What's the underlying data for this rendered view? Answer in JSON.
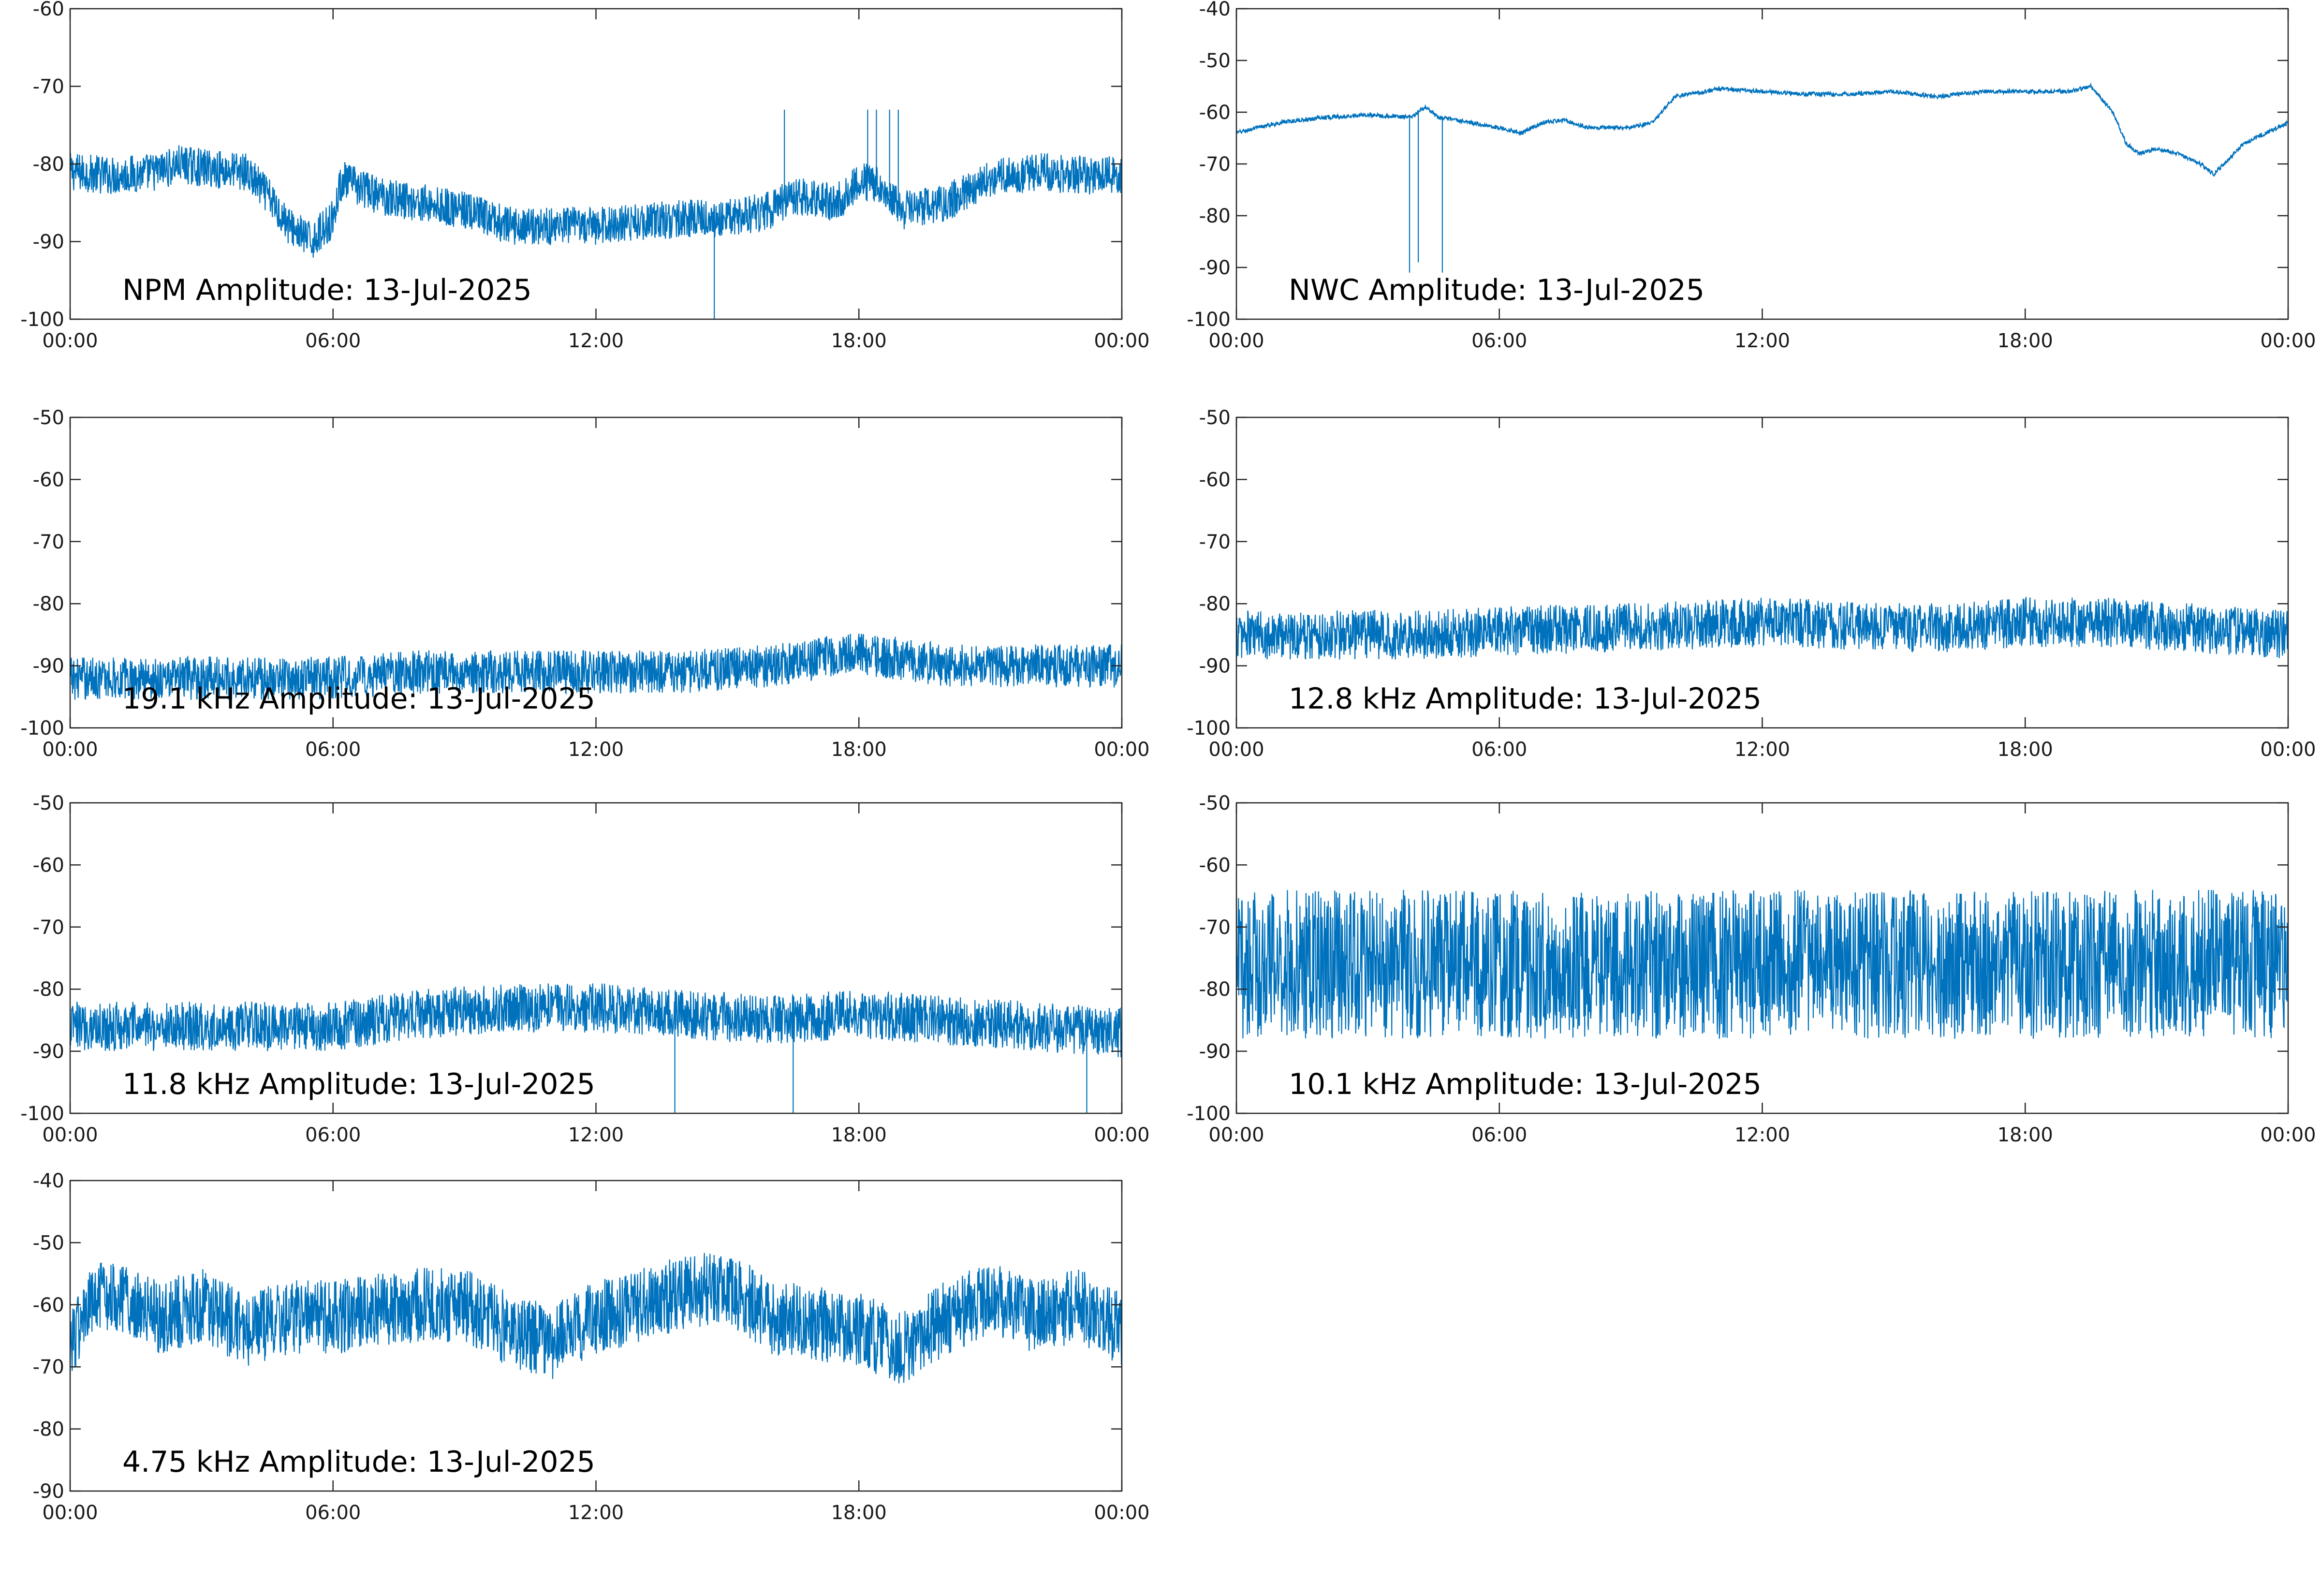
{
  "page": {
    "background": "#ffffff"
  },
  "line_color": "#0072BD",
  "chart_data": [
    {
      "type": "line",
      "title": "NPM Amplitude: 13-Jul-2025",
      "xlabel": "",
      "ylabel": "",
      "x_ticks": [
        "00:00",
        "06:00",
        "12:00",
        "18:00",
        "00:00"
      ],
      "xlim_hours": [
        0,
        24
      ],
      "ylim": [
        -100,
        -60
      ],
      "y_ticks": [
        -60,
        -70,
        -80,
        -90,
        -100
      ],
      "grid": false,
      "series": [
        {
          "x_hours": [
            0,
            1,
            2,
            2.5,
            3,
            4,
            4.5,
            5,
            5.5,
            6,
            6.2,
            7,
            8,
            9,
            10,
            11,
            12,
            13,
            14,
            15,
            16,
            16.5,
            17,
            17.5,
            18,
            18.5,
            19,
            20,
            21,
            22,
            23,
            24
          ],
          "values": [
            -81,
            -81.5,
            -81,
            -80,
            -80.5,
            -81,
            -84,
            -88,
            -90,
            -87,
            -82,
            -84,
            -85,
            -86,
            -88,
            -88,
            -88,
            -87.5,
            -87,
            -87,
            -86,
            -84,
            -84.5,
            -85,
            -82,
            -83,
            -86,
            -85,
            -82,
            -81,
            -81.5,
            -81.5
          ],
          "noise_amplitude": 2.5,
          "spikes": [
            {
              "x_hours": 16.3,
              "value": -73
            },
            {
              "x_hours": 18.2,
              "value": -73
            },
            {
              "x_hours": 18.4,
              "value": -73
            },
            {
              "x_hours": 18.7,
              "value": -73
            },
            {
              "x_hours": 18.9,
              "value": -73
            },
            {
              "x_hours": 14.7,
              "value": -100
            }
          ]
        }
      ]
    },
    {
      "type": "line",
      "title": "NWC Amplitude: 13-Jul-2025",
      "xlabel": "",
      "ylabel": "",
      "x_ticks": [
        "00:00",
        "06:00",
        "12:00",
        "18:00",
        "00:00"
      ],
      "xlim_hours": [
        0,
        24
      ],
      "ylim": [
        -100,
        -40
      ],
      "y_ticks": [
        -40,
        -50,
        -60,
        -70,
        -80,
        -90,
        -100
      ],
      "grid": false,
      "series": [
        {
          "x_hours": [
            0,
            1,
            2,
            3,
            4,
            4.3,
            4.6,
            5,
            6,
            6.5,
            7,
            7.5,
            8,
            9,
            9.5,
            10,
            11,
            12,
            13,
            14,
            15,
            16,
            17,
            18,
            19,
            19.5,
            20,
            20.3,
            20.6,
            21,
            21.5,
            22,
            22.3,
            23,
            24
          ],
          "values": [
            -64,
            -62,
            -61,
            -60.5,
            -61,
            -59,
            -61,
            -61.5,
            -63,
            -64,
            -62,
            -61.5,
            -63,
            -63,
            -62,
            -57,
            -55.5,
            -56,
            -56.5,
            -56.5,
            -56,
            -57,
            -56,
            -56,
            -56,
            -55,
            -60,
            -66,
            -68,
            -67,
            -68,
            -70,
            -72,
            -66,
            -62
          ],
          "noise_amplitude": 0.4,
          "spikes": [
            {
              "x_hours": 3.95,
              "value": -91
            },
            {
              "x_hours": 4.15,
              "value": -89
            },
            {
              "x_hours": 4.7,
              "value": -91
            }
          ]
        }
      ]
    },
    {
      "type": "line",
      "title": "19.1 kHz Amplitude: 13-Jul-2025",
      "xlabel": "",
      "ylabel": "",
      "x_ticks": [
        "00:00",
        "06:00",
        "12:00",
        "18:00",
        "00:00"
      ],
      "xlim_hours": [
        0,
        24
      ],
      "ylim": [
        -100,
        -50
      ],
      "y_ticks": [
        -50,
        -60,
        -70,
        -80,
        -90,
        -100
      ],
      "grid": false,
      "series": [
        {
          "x_hours": [
            0,
            3,
            6,
            8,
            10,
            12,
            14,
            16,
            17,
            18,
            19,
            20,
            22,
            24
          ],
          "values": [
            -92,
            -92,
            -92,
            -91,
            -91,
            -91,
            -91,
            -90,
            -89,
            -88,
            -89,
            -90,
            -90,
            -90
          ],
          "noise_amplitude": 3.5,
          "spikes": []
        }
      ]
    },
    {
      "type": "line",
      "title": "12.8 kHz Amplitude: 13-Jul-2025",
      "xlabel": "",
      "ylabel": "",
      "x_ticks": [
        "00:00",
        "06:00",
        "12:00",
        "18:00",
        "00:00"
      ],
      "xlim_hours": [
        0,
        24
      ],
      "ylim": [
        -100,
        -50
      ],
      "y_ticks": [
        -50,
        -60,
        -70,
        -80,
        -90,
        -100
      ],
      "grid": false,
      "series": [
        {
          "x_hours": [
            0,
            4,
            8,
            12,
            16,
            18,
            20,
            22,
            24
          ],
          "values": [
            -85,
            -85,
            -84,
            -83,
            -84,
            -83,
            -83,
            -84,
            -85
          ],
          "noise_amplitude": 4,
          "spikes": []
        }
      ]
    },
    {
      "type": "line",
      "title": "11.8 kHz Amplitude: 13-Jul-2025",
      "xlabel": "",
      "ylabel": "",
      "x_ticks": [
        "00:00",
        "06:00",
        "12:00",
        "18:00",
        "00:00"
      ],
      "xlim_hours": [
        0,
        24
      ],
      "ylim": [
        -100,
        -50
      ],
      "y_ticks": [
        -50,
        -60,
        -70,
        -80,
        -90,
        -100
      ],
      "grid": false,
      "series": [
        {
          "x_hours": [
            0,
            3,
            6,
            8,
            10,
            12,
            14,
            16,
            18,
            20,
            22,
            24
          ],
          "values": [
            -86,
            -86,
            -86,
            -84,
            -83,
            -83,
            -84,
            -85,
            -84,
            -85,
            -86,
            -87
          ],
          "noise_amplitude": 4,
          "spikes": [
            {
              "x_hours": 13.8,
              "value": -100
            },
            {
              "x_hours": 16.5,
              "value": -100
            },
            {
              "x_hours": 23.2,
              "value": -100
            }
          ]
        }
      ]
    },
    {
      "type": "line",
      "title": "10.1 kHz Amplitude: 13-Jul-2025",
      "xlabel": "",
      "ylabel": "",
      "x_ticks": [
        "00:00",
        "06:00",
        "12:00",
        "18:00",
        "00:00"
      ],
      "xlim_hours": [
        0,
        24
      ],
      "ylim": [
        -100,
        -50
      ],
      "y_ticks": [
        -50,
        -60,
        -70,
        -80,
        -90,
        -100
      ],
      "grid": false,
      "series": [
        {
          "x_hours": [
            0,
            6,
            12,
            18,
            24
          ],
          "values": [
            -76,
            -76,
            -76,
            -76,
            -76
          ],
          "noise_amplitude": 12,
          "spikes": []
        }
      ]
    },
    {
      "type": "line",
      "title": "4.75 kHz Amplitude: 13-Jul-2025",
      "xlabel": "",
      "ylabel": "",
      "x_ticks": [
        "00:00",
        "06:00",
        "12:00",
        "18:00",
        "00:00"
      ],
      "xlim_hours": [
        0,
        24
      ],
      "ylim": [
        -90,
        -40
      ],
      "y_ticks": [
        -40,
        -50,
        -60,
        -70,
        -80,
        -90
      ],
      "grid": false,
      "series": [
        {
          "x_hours": [
            0,
            0.5,
            1,
            2,
            3,
            4,
            5,
            6,
            7,
            8,
            9,
            10,
            11,
            12,
            13,
            14,
            15,
            16,
            17,
            18,
            19,
            20,
            21,
            22,
            23,
            24
          ],
          "values": [
            -66,
            -60,
            -58,
            -62,
            -60,
            -64,
            -62,
            -62,
            -61,
            -60,
            -60,
            -64,
            -66,
            -62,
            -60,
            -58,
            -57,
            -62,
            -63,
            -64,
            -67,
            -62,
            -59,
            -62,
            -60,
            -64
          ],
          "noise_amplitude": 6,
          "spikes": []
        }
      ]
    }
  ]
}
